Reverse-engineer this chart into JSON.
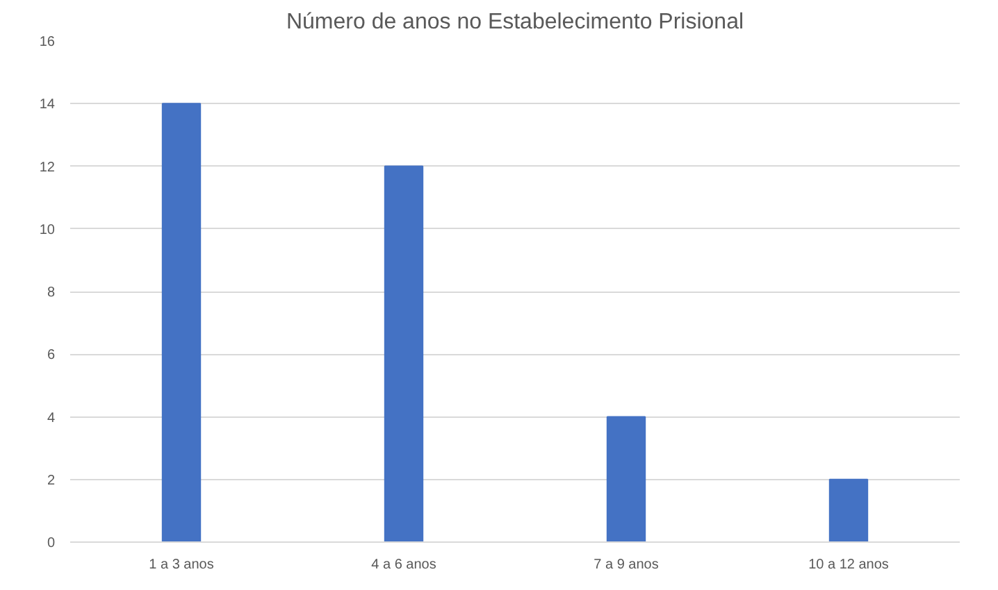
{
  "chart_data": {
    "type": "bar",
    "title": "Número de anos no Estabelecimento Prisional",
    "categories": [
      "1 a 3 anos",
      "4 a 6 anos",
      "7 a 9 anos",
      "10 a 12 anos"
    ],
    "values": [
      14,
      12,
      4,
      2
    ],
    "color": "#4472c4",
    "ylim": [
      0,
      16
    ],
    "yticks": [
      0,
      2,
      4,
      6,
      8,
      10,
      12,
      14,
      16
    ],
    "grid": "y"
  }
}
